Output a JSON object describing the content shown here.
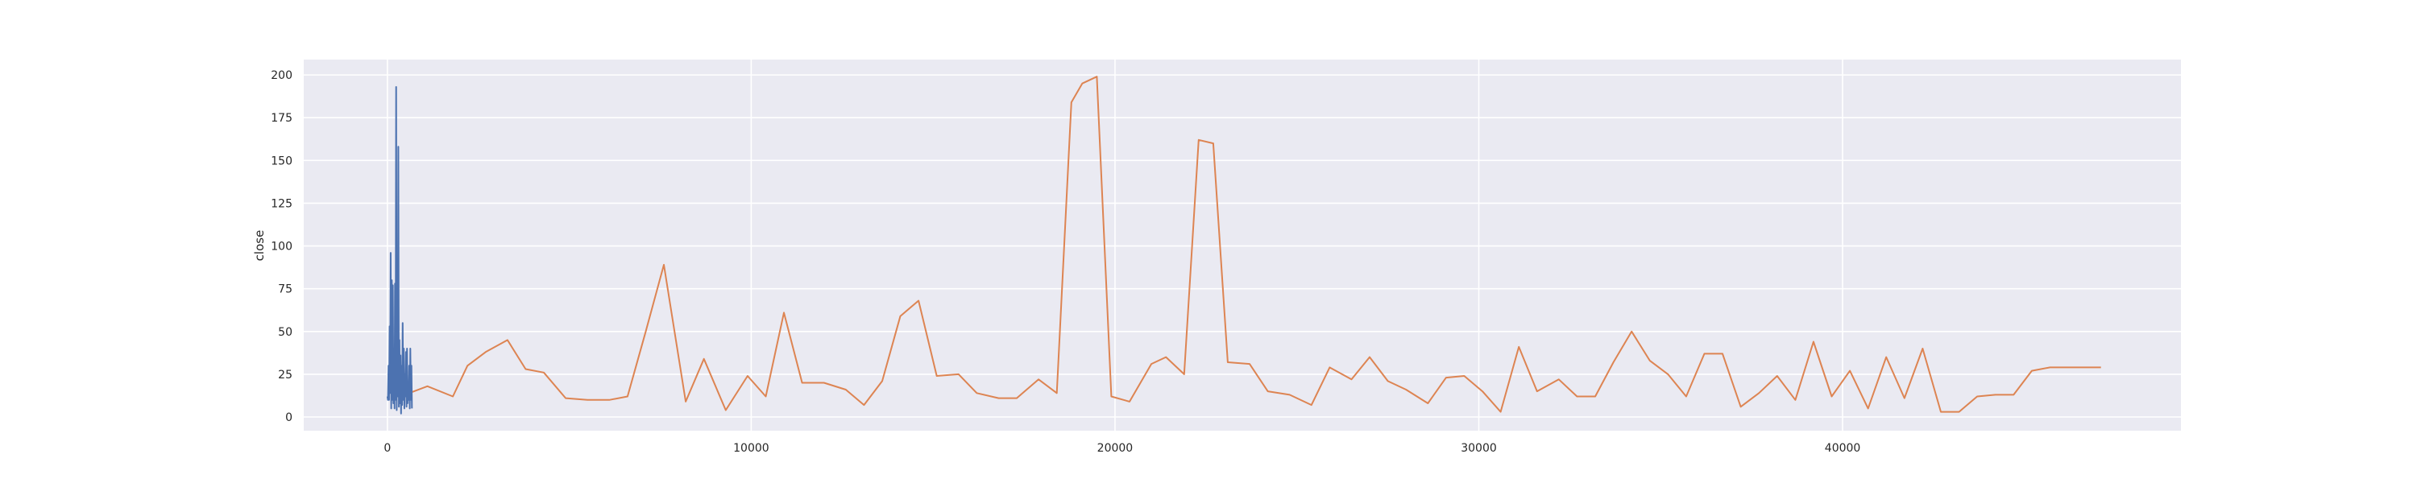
{
  "chart_data": {
    "type": "line",
    "title": "",
    "xlabel": "",
    "ylabel": "close",
    "xlim": [
      -2300,
      49300
    ],
    "ylim": [
      -8,
      209
    ],
    "x_ticks": [
      0,
      10000,
      20000,
      30000,
      40000
    ],
    "y_ticks": [
      0,
      25,
      50,
      75,
      100,
      125,
      150,
      175,
      200
    ],
    "grid": true,
    "legend": "none",
    "background": "#eaeaf2",
    "grid_color": "#ffffff",
    "series": [
      {
        "color": "#4c72b0",
        "x": [
          0,
          15,
          30,
          45,
          60,
          75,
          90,
          105,
          120,
          135,
          150,
          165,
          180,
          195,
          210,
          225,
          240,
          255,
          270,
          285,
          300,
          315,
          330,
          345,
          360,
          375,
          390,
          405,
          420,
          435,
          450,
          465,
          480,
          495,
          510,
          525,
          540,
          555,
          570,
          585,
          600,
          615,
          630,
          645,
          660,
          675
        ],
        "values": [
          12,
          10,
          30,
          10,
          53,
          14,
          96,
          5,
          80,
          10,
          77,
          8,
          40,
          5,
          78,
          10,
          193,
          4,
          60,
          12,
          158,
          6,
          45,
          8,
          36,
          2,
          30,
          7,
          55,
          10,
          40,
          5,
          25,
          12,
          38,
          6,
          40,
          8,
          20,
          10,
          30,
          5,
          40,
          10,
          30,
          5
        ]
      },
      {
        "color": "#dd8452",
        "x": [
          600,
          1100,
          1800,
          2200,
          2700,
          3300,
          3800,
          4300,
          4900,
          5500,
          6100,
          6600,
          7100,
          7600,
          8200,
          8700,
          9300,
          9900,
          10400,
          10900,
          11400,
          12000,
          12600,
          13100,
          13600,
          14100,
          14600,
          15100,
          15700,
          16200,
          16800,
          17300,
          17900,
          18400,
          18800,
          19100,
          19500,
          19900,
          20400,
          21000,
          21400,
          21900,
          22300,
          22700,
          23100,
          23700,
          24200,
          24800,
          25400,
          25900,
          26500,
          27000,
          27500,
          28000,
          28600,
          29100,
          29600,
          30100,
          30600,
          31100,
          31600,
          32200,
          32700,
          33200,
          33700,
          34200,
          34700,
          35200,
          35700,
          36200,
          36700,
          37200,
          37700,
          38200,
          38700,
          39200,
          39700,
          40200,
          40700,
          41200,
          41700,
          42200,
          42700,
          43200,
          43700,
          44200,
          44700,
          45200,
          45700,
          46200,
          46700,
          47100
        ],
        "values": [
          14,
          18,
          12,
          30,
          38,
          45,
          28,
          26,
          11,
          10,
          10,
          12,
          50,
          89,
          9,
          34,
          4,
          24,
          12,
          61,
          20,
          20,
          16,
          7,
          21,
          59,
          68,
          24,
          25,
          14,
          11,
          11,
          22,
          14,
          184,
          195,
          199,
          12,
          9,
          31,
          35,
          25,
          162,
          160,
          32,
          31,
          15,
          13,
          7,
          29,
          22,
          35,
          21,
          16,
          8,
          23,
          24,
          15,
          3,
          41,
          15,
          22,
          12,
          12,
          32,
          50,
          33,
          25,
          12,
          37,
          37,
          6,
          14,
          24,
          10,
          44,
          12,
          27,
          5,
          35,
          11,
          40,
          3,
          3,
          12,
          13,
          13,
          27,
          29,
          29,
          29,
          29
        ]
      }
    ]
  }
}
